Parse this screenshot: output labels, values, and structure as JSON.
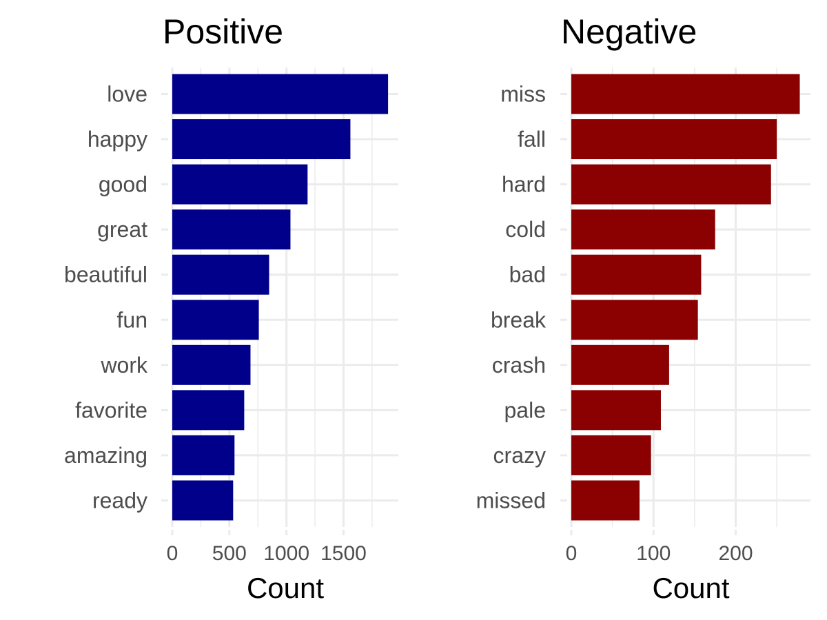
{
  "chart_data": [
    {
      "type": "bar",
      "orientation": "horizontal",
      "title": "Positive",
      "xlabel": "Count",
      "ylabel": "",
      "categories": [
        "love",
        "happy",
        "good",
        "great",
        "beautiful",
        "fun",
        "work",
        "favorite",
        "amazing",
        "ready"
      ],
      "values": [
        1890,
        1560,
        1185,
        1035,
        848,
        758,
        685,
        630,
        545,
        533
      ],
      "xlim": [
        0,
        1980
      ],
      "xticks": [
        0,
        500,
        1000,
        1500
      ],
      "xtick_labels": [
        "0",
        "500",
        "1000",
        "1500"
      ],
      "grid": true,
      "color": "#00008b"
    },
    {
      "type": "bar",
      "orientation": "horizontal",
      "title": "Negative",
      "xlabel": "Count",
      "ylabel": "",
      "categories": [
        "miss",
        "fall",
        "hard",
        "cold",
        "bad",
        "break",
        "crash",
        "pale",
        "crazy",
        "missed"
      ],
      "values": [
        278,
        250,
        243,
        175,
        158,
        154,
        119,
        109,
        97,
        83
      ],
      "xlim": [
        0,
        291
      ],
      "xticks": [
        0,
        100,
        200
      ],
      "xtick_labels": [
        "0",
        "100",
        "200"
      ],
      "grid": true,
      "color": "#8b0000"
    }
  ]
}
